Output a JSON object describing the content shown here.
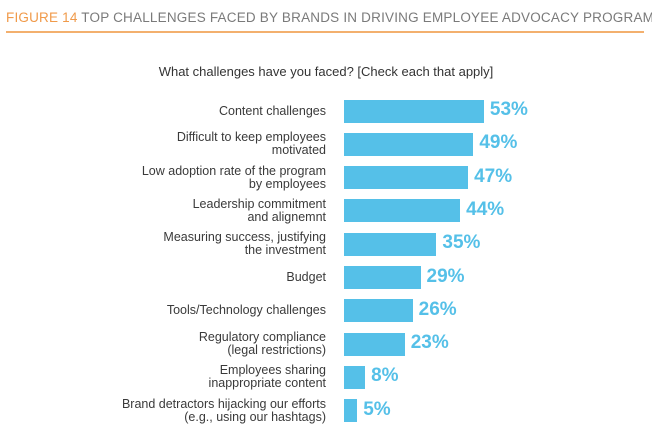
{
  "chart_data": {
    "type": "bar",
    "orientation": "horizontal",
    "figure_label": "FIGURE 14",
    "title": "TOP CHALLENGES FACED BY BRANDS IN DRIVING EMPLOYEE ADVOCACY PROGRAMS",
    "subtitle": "What challenges have you faced? [Check each that apply]",
    "categories": [
      "Content challenges",
      "Difficult to keep employees\nmotivated",
      "Low adoption rate of the program\nby employees",
      "Leadership commitment\nand alignemnt",
      "Measuring success, justifying\nthe investment",
      "Budget",
      "Tools/Technology challenges",
      "Regulatory compliance\n(legal restrictions)",
      "Employees sharing\ninappropriate content",
      "Brand detractors hijacking our efforts\n(e.g., using our hashtags)"
    ],
    "values": [
      53,
      49,
      47,
      44,
      35,
      29,
      26,
      23,
      8,
      5
    ],
    "value_labels": [
      "53%",
      "49%",
      "47%",
      "44%",
      "35%",
      "29%",
      "26%",
      "23%",
      "8%",
      "5%"
    ],
    "color": "#55c0e8"
  }
}
